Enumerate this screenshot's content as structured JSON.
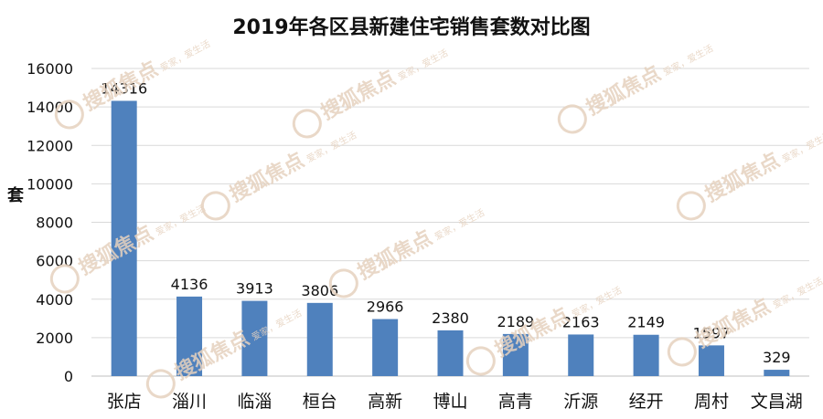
{
  "chart_data": {
    "type": "bar",
    "title": "2019年各区县新建住宅销售套数对比图",
    "ylabel": "套",
    "xlabel": "",
    "ylim": [
      0,
      16000
    ],
    "yticks": [
      0,
      2000,
      4000,
      6000,
      8000,
      10000,
      12000,
      14000,
      16000
    ],
    "grid": true,
    "categories": [
      "张店",
      "淄川",
      "临淄",
      "桓台",
      "高新",
      "博山",
      "高青",
      "沂源",
      "经开",
      "周村",
      "文昌湖"
    ],
    "values": [
      14316,
      4136,
      3913,
      3806,
      2966,
      2380,
      2189,
      2163,
      2149,
      1597,
      329
    ],
    "bar_color": "#4f81bd"
  },
  "watermark": {
    "brand": "搜狐焦点",
    "slogan": "爱家，爱生活"
  }
}
